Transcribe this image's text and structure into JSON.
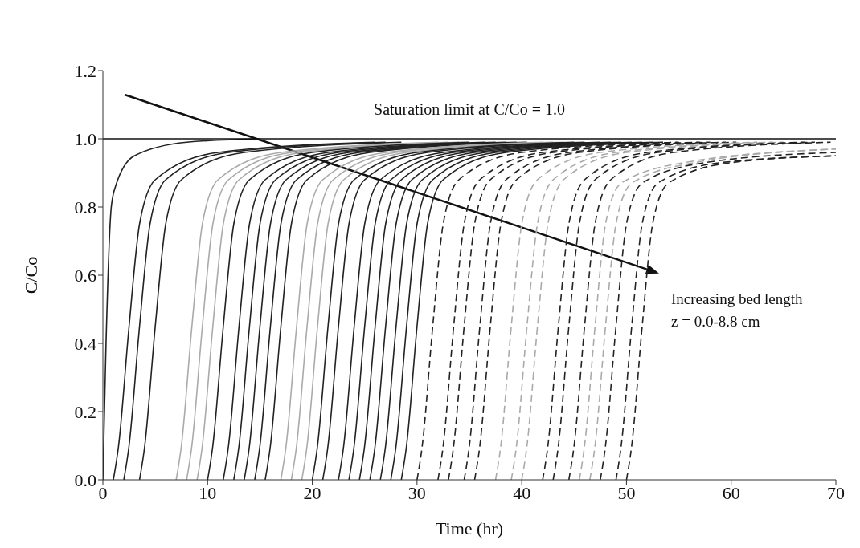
{
  "chart_data": {
    "type": "line",
    "xlabel": "Time (hr)",
    "ylabel": "C/Co",
    "xlim": [
      0,
      70
    ],
    "xticks": [
      0,
      10,
      20,
      30,
      40,
      50,
      60,
      70
    ],
    "ylim": [
      0,
      1.2
    ],
    "yticks": [
      {
        "value": 0,
        "label": "0.0"
      },
      {
        "value": 0.2,
        "label": "0.2"
      },
      {
        "value": 0.4,
        "label": "0.4"
      },
      {
        "value": 0.6,
        "label": "0.6"
      },
      {
        "value": 0.8,
        "label": "0.8"
      },
      {
        "value": 1,
        "label": "1.0"
      },
      {
        "value": 1.2,
        "label": "1.2"
      }
    ],
    "grid": false,
    "legend": false,
    "marker": "none",
    "ref_lines": [
      {
        "axis": "y",
        "value": 1,
        "label": "Saturation limit at C/Co = 1.0",
        "color": "#111111"
      }
    ],
    "annotations": [
      "Increasing bed length",
      "z = 0.0-8.8 cm"
    ],
    "series": [
      {
        "color": "#222222",
        "line_style": "solid",
        "x": [
          0,
          0.3,
          0.8,
          1.2,
          3,
          8,
          15
        ],
        "values": [
          0,
          0.4,
          0.8,
          0.86,
          0.95,
          0.99,
          1
        ]
      },
      {
        "color": "#222222",
        "line_style": "solid",
        "x": [
          1,
          1.5,
          2.5,
          3.5,
          5,
          11,
          26
        ],
        "values": [
          0,
          0.1,
          0.45,
          0.75,
          0.88,
          0.96,
          0.99
        ]
      },
      {
        "color": "#222222",
        "line_style": "solid",
        "x": [
          2,
          2.5,
          3.5,
          4.5,
          6,
          12,
          27
        ],
        "values": [
          0,
          0.1,
          0.45,
          0.75,
          0.88,
          0.96,
          0.99
        ]
      },
      {
        "color": "#222222",
        "line_style": "solid",
        "x": [
          3.5,
          4,
          5,
          6,
          7.5,
          13.5,
          28.5
        ],
        "values": [
          0,
          0.1,
          0.45,
          0.75,
          0.88,
          0.96,
          0.99
        ]
      },
      {
        "color": "#aaaaaa",
        "line_style": "solid",
        "x": [
          7,
          7.5,
          8.5,
          9.5,
          11,
          17,
          32
        ],
        "values": [
          0,
          0.1,
          0.45,
          0.75,
          0.88,
          0.96,
          0.99
        ]
      },
      {
        "color": "#aaaaaa",
        "line_style": "solid",
        "x": [
          8,
          8.5,
          9.5,
          10.5,
          12,
          18,
          33
        ],
        "values": [
          0,
          0.1,
          0.45,
          0.75,
          0.88,
          0.96,
          0.99
        ]
      },
      {
        "color": "#aaaaaa",
        "line_style": "solid",
        "x": [
          9,
          9.5,
          10.5,
          11.5,
          13,
          19,
          34
        ],
        "values": [
          0,
          0.1,
          0.45,
          0.75,
          0.88,
          0.96,
          0.99
        ]
      },
      {
        "color": "#222222",
        "line_style": "solid",
        "x": [
          10,
          10.5,
          11.5,
          12.5,
          14,
          20,
          35
        ],
        "values": [
          0,
          0.1,
          0.45,
          0.75,
          0.88,
          0.96,
          0.99
        ]
      },
      {
        "color": "#222222",
        "line_style": "solid",
        "x": [
          11.5,
          12,
          13,
          14,
          15.5,
          21.5,
          36.5
        ],
        "values": [
          0,
          0.1,
          0.45,
          0.75,
          0.88,
          0.96,
          0.99
        ]
      },
      {
        "color": "#222222",
        "line_style": "solid",
        "x": [
          12.5,
          13,
          14,
          15,
          16.5,
          22.5,
          37.5
        ],
        "values": [
          0,
          0.1,
          0.45,
          0.75,
          0.88,
          0.96,
          0.99
        ]
      },
      {
        "color": "#222222",
        "line_style": "solid",
        "x": [
          13.5,
          14,
          15,
          16,
          17.5,
          23.5,
          38.5
        ],
        "values": [
          0,
          0.1,
          0.45,
          0.75,
          0.88,
          0.96,
          0.99
        ]
      },
      {
        "color": "#222222",
        "line_style": "solid",
        "x": [
          14.5,
          15,
          16,
          17,
          18.5,
          24.5,
          39.5
        ],
        "values": [
          0,
          0.1,
          0.45,
          0.75,
          0.88,
          0.96,
          0.99
        ]
      },
      {
        "color": "#222222",
        "line_style": "solid",
        "x": [
          15.5,
          16,
          17,
          18,
          19.5,
          25.5,
          40.5
        ],
        "values": [
          0,
          0.1,
          0.45,
          0.75,
          0.88,
          0.96,
          0.99
        ]
      },
      {
        "color": "#aaaaaa",
        "line_style": "solid",
        "x": [
          17,
          17.5,
          18.5,
          19.5,
          21,
          27,
          42
        ],
        "values": [
          0,
          0.1,
          0.45,
          0.75,
          0.88,
          0.96,
          0.99
        ]
      },
      {
        "color": "#aaaaaa",
        "line_style": "solid",
        "x": [
          18,
          18.5,
          19.5,
          20.5,
          22,
          28,
          43
        ],
        "values": [
          0,
          0.1,
          0.45,
          0.75,
          0.88,
          0.96,
          0.99
        ]
      },
      {
        "color": "#aaaaaa",
        "line_style": "solid",
        "x": [
          19,
          19.5,
          20.5,
          21.5,
          23,
          29,
          44
        ],
        "values": [
          0,
          0.1,
          0.45,
          0.75,
          0.88,
          0.96,
          0.99
        ]
      },
      {
        "color": "#222222",
        "line_style": "solid",
        "x": [
          20,
          20.5,
          21.5,
          22.5,
          24,
          30,
          45
        ],
        "values": [
          0,
          0.1,
          0.45,
          0.75,
          0.88,
          0.96,
          0.99
        ]
      },
      {
        "color": "#222222",
        "line_style": "solid",
        "x": [
          21,
          21.5,
          22.5,
          23.5,
          25,
          31,
          46
        ],
        "values": [
          0,
          0.1,
          0.45,
          0.75,
          0.88,
          0.96,
          0.99
        ]
      },
      {
        "color": "#222222",
        "line_style": "solid",
        "x": [
          22.5,
          23,
          24,
          25,
          26.5,
          32.5,
          47.5
        ],
        "values": [
          0,
          0.1,
          0.45,
          0.75,
          0.88,
          0.96,
          0.99
        ]
      },
      {
        "color": "#222222",
        "line_style": "solid",
        "x": [
          23.5,
          24,
          25,
          26,
          27.5,
          33.5,
          48.5
        ],
        "values": [
          0,
          0.1,
          0.45,
          0.75,
          0.88,
          0.96,
          0.99
        ]
      },
      {
        "color": "#222222",
        "line_style": "solid",
        "x": [
          24.5,
          25,
          26,
          27,
          28.5,
          34.5,
          49.5
        ],
        "values": [
          0,
          0.1,
          0.45,
          0.75,
          0.88,
          0.96,
          0.99
        ]
      },
      {
        "color": "#222222",
        "line_style": "solid",
        "x": [
          25.5,
          26,
          27,
          28,
          29.5,
          35.5,
          50.5
        ],
        "values": [
          0,
          0.1,
          0.45,
          0.75,
          0.88,
          0.96,
          0.99
        ]
      },
      {
        "color": "#222222",
        "line_style": "solid",
        "x": [
          26.5,
          27,
          28,
          29,
          30.5,
          36.5,
          51.5
        ],
        "values": [
          0,
          0.1,
          0.45,
          0.75,
          0.88,
          0.96,
          0.99
        ]
      },
      {
        "color": "#222222",
        "line_style": "solid",
        "x": [
          27.5,
          28,
          29,
          30,
          31.5,
          37.5,
          52.5
        ],
        "values": [
          0,
          0.1,
          0.45,
          0.75,
          0.88,
          0.96,
          0.99
        ]
      },
      {
        "color": "#222222",
        "line_style": "solid",
        "x": [
          28.5,
          29,
          30,
          31,
          32.5,
          38.5,
          53.5
        ],
        "values": [
          0,
          0.1,
          0.45,
          0.75,
          0.88,
          0.96,
          0.99
        ]
      },
      {
        "color": "#222222",
        "line_style": "dashed",
        "x": [
          30,
          30.5,
          31.5,
          32.5,
          34,
          40,
          55
        ],
        "values": [
          0,
          0.1,
          0.45,
          0.75,
          0.88,
          0.96,
          0.99
        ]
      },
      {
        "color": "#222222",
        "line_style": "dashed",
        "x": [
          32,
          32.5,
          33.5,
          34.5,
          36,
          42,
          57
        ],
        "values": [
          0,
          0.1,
          0.45,
          0.75,
          0.88,
          0.96,
          0.99
        ]
      },
      {
        "color": "#222222",
        "line_style": "dashed",
        "x": [
          33,
          33.5,
          34.5,
          35.5,
          37,
          43,
          58
        ],
        "values": [
          0,
          0.1,
          0.45,
          0.75,
          0.88,
          0.96,
          0.99
        ]
      },
      {
        "color": "#222222",
        "line_style": "dashed",
        "x": [
          34.5,
          35,
          36,
          37,
          38.5,
          44.5,
          59.5
        ],
        "values": [
          0,
          0.1,
          0.45,
          0.75,
          0.88,
          0.96,
          0.99
        ]
      },
      {
        "color": "#222222",
        "line_style": "dashed",
        "x": [
          35.5,
          36,
          37,
          38,
          39.5,
          45.5,
          60.5
        ],
        "values": [
          0,
          0.1,
          0.45,
          0.75,
          0.88,
          0.96,
          0.99
        ]
      },
      {
        "color": "#aaaaaa",
        "line_style": "dashed",
        "x": [
          37.5,
          38,
          39,
          40,
          41.5,
          47.5,
          62.5
        ],
        "values": [
          0,
          0.1,
          0.45,
          0.75,
          0.88,
          0.96,
          0.99
        ]
      },
      {
        "color": "#aaaaaa",
        "line_style": "dashed",
        "x": [
          39,
          39.5,
          40.5,
          41.5,
          43,
          49,
          64
        ],
        "values": [
          0,
          0.1,
          0.45,
          0.75,
          0.88,
          0.96,
          0.99
        ]
      },
      {
        "color": "#aaaaaa",
        "line_style": "dashed",
        "x": [
          40,
          40.5,
          41.5,
          42.5,
          44,
          50,
          65
        ],
        "values": [
          0,
          0.1,
          0.45,
          0.75,
          0.88,
          0.96,
          0.99
        ]
      },
      {
        "color": "#222222",
        "line_style": "dashed",
        "x": [
          42,
          42.5,
          43.5,
          44.5,
          46,
          52,
          67
        ],
        "values": [
          0,
          0.1,
          0.45,
          0.75,
          0.88,
          0.96,
          0.99
        ]
      },
      {
        "color": "#222222",
        "line_style": "dashed",
        "x": [
          43,
          43.5,
          44.5,
          45.5,
          47,
          53,
          68
        ],
        "values": [
          0,
          0.1,
          0.45,
          0.75,
          0.88,
          0.96,
          0.99
        ]
      },
      {
        "color": "#222222",
        "line_style": "dashed",
        "x": [
          44.5,
          45,
          46,
          47,
          48.5,
          54.5,
          69.5
        ],
        "values": [
          0,
          0.1,
          0.45,
          0.75,
          0.88,
          0.96,
          0.99
        ]
      },
      {
        "color": "#aaaaaa",
        "line_style": "dashed",
        "x": [
          45.5,
          46,
          47,
          48,
          49.5,
          55.5,
          70
        ],
        "values": [
          0,
          0.1,
          0.45,
          0.75,
          0.87,
          0.93,
          0.97
        ]
      },
      {
        "color": "#aaaaaa",
        "line_style": "dashed",
        "x": [
          46.5,
          47,
          48,
          49,
          50.5,
          56.5,
          70
        ],
        "values": [
          0,
          0.1,
          0.45,
          0.75,
          0.87,
          0.93,
          0.97
        ]
      },
      {
        "color": "#222222",
        "line_style": "dashed",
        "x": [
          47.5,
          48,
          49,
          50,
          51.5,
          57.5,
          70
        ],
        "values": [
          0,
          0.1,
          0.45,
          0.75,
          0.87,
          0.93,
          0.96
        ]
      },
      {
        "color": "#222222",
        "line_style": "dashed",
        "x": [
          49,
          49.5,
          50.5,
          51.5,
          53,
          59,
          70
        ],
        "values": [
          0,
          0.1,
          0.45,
          0.75,
          0.87,
          0.93,
          0.95
        ]
      },
      {
        "color": "#222222",
        "line_style": "dashed",
        "x": [
          50,
          50.5,
          51.5,
          52.5,
          54,
          60,
          70
        ],
        "values": [
          0,
          0.1,
          0.45,
          0.75,
          0.87,
          0.93,
          0.95
        ]
      }
    ]
  }
}
